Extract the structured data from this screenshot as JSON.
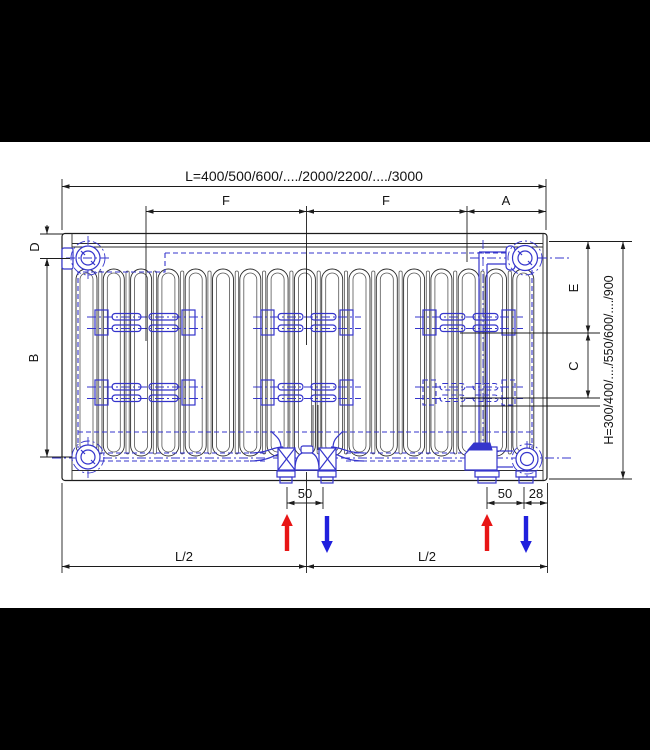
{
  "drawing": {
    "title_hint": "panel radiator dimensional diagram",
    "dimensions": {
      "length": "L=400/500/600/..../2000/2200/..../3000",
      "f_left": "F",
      "f_right": "F",
      "a": "A",
      "d": "D",
      "b": "B",
      "e": "E",
      "c": "C",
      "height": "H=300/400/..../550/600/..../900",
      "conn_spacing_center": "50",
      "conn_spacing_right": "50",
      "edge_offset": "28",
      "half_length_left": "L/2",
      "half_length_right": "L/2"
    },
    "icons": {
      "supply_arrow": "arrow-up",
      "return_arrow": "arrow-down"
    },
    "colors": {
      "line": "#1c1c1c",
      "hydraulic_blue": "#3535cc",
      "supply_red": "#e81515",
      "return_blue": "#2020dd",
      "paper": "#ffffff",
      "letterbox": "#000000"
    }
  }
}
